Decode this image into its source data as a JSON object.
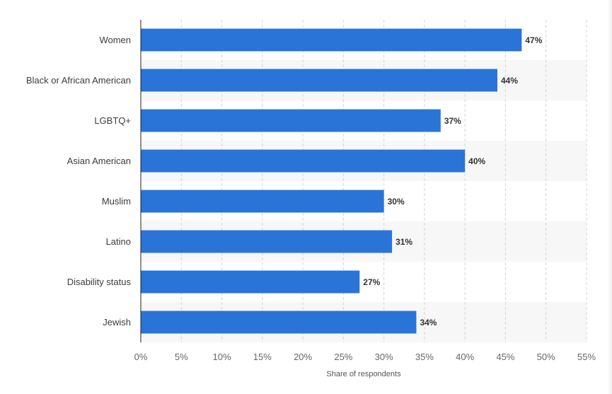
{
  "chart_data": {
    "type": "bar",
    "orientation": "horizontal",
    "categories": [
      "Women",
      "Black or African American",
      "LGBTQ+",
      "Asian American",
      "Muslim",
      "Latino",
      "Disability status",
      "Jewish"
    ],
    "values": [
      47,
      44,
      37,
      40,
      30,
      31,
      27,
      34
    ],
    "value_labels": [
      "47%",
      "44%",
      "37%",
      "40%",
      "30%",
      "31%",
      "27%",
      "34%"
    ],
    "xlabel": "Share of respondents",
    "xlim": [
      0,
      55
    ],
    "x_ticks": [
      0,
      5,
      10,
      15,
      20,
      25,
      30,
      35,
      40,
      45,
      50,
      55
    ],
    "x_tick_labels": [
      "0%",
      "5%",
      "10%",
      "15%",
      "20%",
      "25%",
      "30%",
      "35%",
      "40%",
      "45%",
      "50%",
      "55%"
    ],
    "grid": true,
    "legend": "none",
    "colors": {
      "bar": "#2a74d8",
      "band": "#f7f7f7",
      "grid": "#d4d4d4",
      "axis": "#222222"
    }
  }
}
